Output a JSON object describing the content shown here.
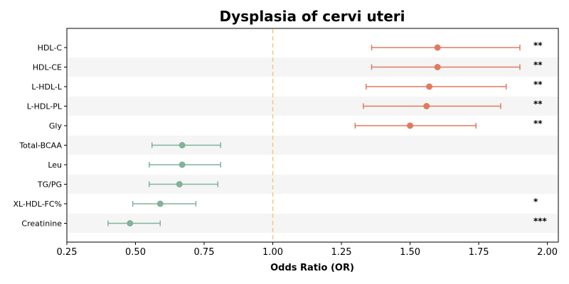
{
  "chart_data": {
    "type": "forest",
    "title": "Dysplasia of cervi uteri",
    "xlabel": "Odds Ratio (OR)",
    "xlim": [
      0.25,
      2.04
    ],
    "xticks": [
      "0.25",
      "0.50",
      "0.75",
      "1.00",
      "1.25",
      "1.50",
      "1.75",
      "2.00"
    ],
    "reference_line": 1.0,
    "colors": {
      "positive": "#E07A5F",
      "negative": "#81B29A",
      "reference": "#F6C77A",
      "band": "#f5f5f5"
    },
    "rows": [
      {
        "label": "HDL-C",
        "or": 1.6,
        "lo": 1.36,
        "hi": 1.9,
        "sig": "**",
        "direction": "positive"
      },
      {
        "label": "HDL-CE",
        "or": 1.6,
        "lo": 1.36,
        "hi": 1.9,
        "sig": "**",
        "direction": "positive"
      },
      {
        "label": "L-HDL-L",
        "or": 1.57,
        "lo": 1.34,
        "hi": 1.85,
        "sig": "**",
        "direction": "positive"
      },
      {
        "label": "L-HDL-PL",
        "or": 1.56,
        "lo": 1.33,
        "hi": 1.83,
        "sig": "**",
        "direction": "positive"
      },
      {
        "label": "Gly",
        "or": 1.5,
        "lo": 1.3,
        "hi": 1.74,
        "sig": "**",
        "direction": "positive"
      },
      {
        "label": "Total-BCAA",
        "or": 0.67,
        "lo": 0.56,
        "hi": 0.81,
        "sig": "",
        "direction": "negative"
      },
      {
        "label": "Leu",
        "or": 0.67,
        "lo": 0.55,
        "hi": 0.81,
        "sig": "",
        "direction": "negative"
      },
      {
        "label": "TG/PG",
        "or": 0.66,
        "lo": 0.55,
        "hi": 0.8,
        "sig": "",
        "direction": "negative"
      },
      {
        "label": "XL-HDL-FC%",
        "or": 0.59,
        "lo": 0.49,
        "hi": 0.72,
        "sig": "*",
        "direction": "negative"
      },
      {
        "label": "Creatinine",
        "or": 0.48,
        "lo": 0.4,
        "hi": 0.59,
        "sig": "***",
        "direction": "negative"
      }
    ]
  }
}
